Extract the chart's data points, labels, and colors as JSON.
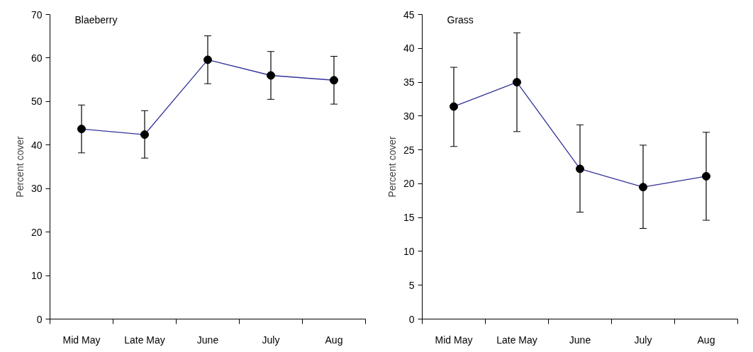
{
  "chart_data": [
    {
      "type": "line",
      "categories": [
        "Mid May",
        "Late May",
        "June",
        "July",
        "Aug"
      ],
      "ylabel": "Percent cover",
      "annotations": [
        "Blaeberry"
      ],
      "series": [
        {
          "color": "#333399",
          "values": [
            43.7,
            42.4,
            59.6,
            56.0,
            54.9
          ],
          "errors": [
            [
              38.2,
              49.2
            ],
            [
              37.0,
              47.9
            ],
            [
              54.1,
              65.1
            ],
            [
              50.5,
              61.5
            ],
            [
              49.4,
              60.4
            ]
          ]
        }
      ],
      "ylim": [
        0,
        70
      ],
      "yticks": [
        0,
        10,
        20,
        30,
        40,
        50,
        60,
        70
      ],
      "grid": false,
      "marker": "circle",
      "line_style": "solid"
    },
    {
      "type": "line",
      "categories": [
        "Mid May",
        "Late May",
        "June",
        "July",
        "Aug"
      ],
      "ylabel": "Percent cover",
      "annotations": [
        "Grass"
      ],
      "series": [
        {
          "color": "#333399",
          "values": [
            31.4,
            35.0,
            22.2,
            19.5,
            21.1
          ],
          "errors": [
            [
              25.5,
              37.2
            ],
            [
              27.7,
              42.3
            ],
            [
              15.8,
              28.7
            ],
            [
              13.4,
              25.7
            ],
            [
              14.6,
              27.6
            ]
          ]
        }
      ],
      "ylim": [
        0,
        45
      ],
      "yticks": [
        0,
        5,
        10,
        15,
        20,
        25,
        30,
        35,
        40,
        45
      ],
      "grid": false,
      "marker": "circle",
      "line_style": "solid"
    }
  ]
}
